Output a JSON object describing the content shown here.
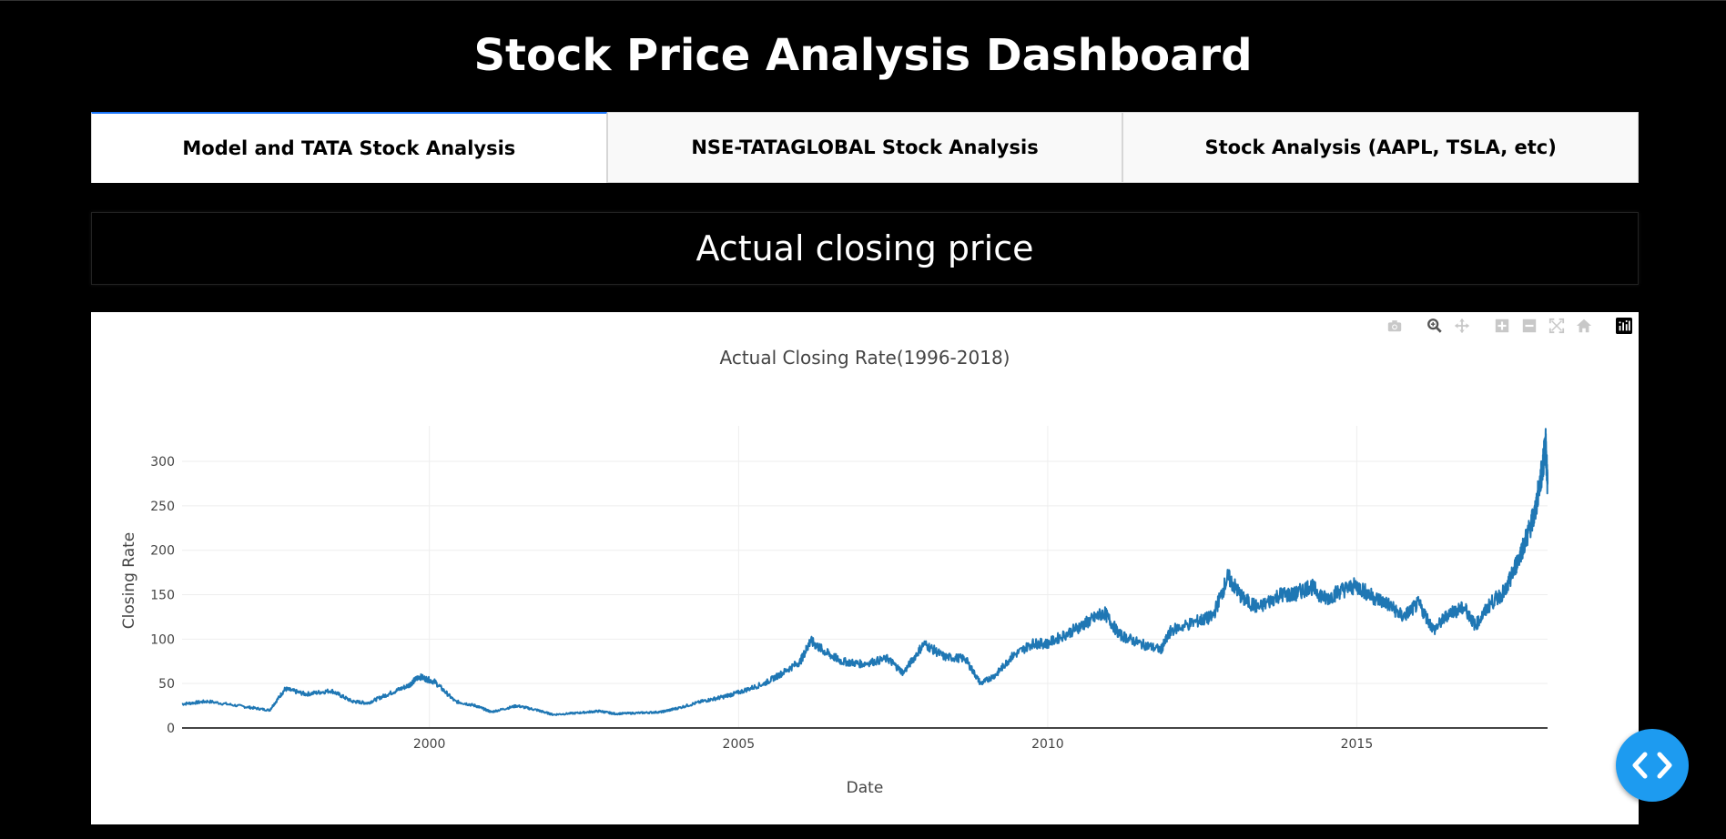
{
  "header": {
    "title": "Stock Price Analysis Dashboard"
  },
  "tabs": [
    {
      "label": "Model and TATA Stock Analysis",
      "selected": true
    },
    {
      "label": "NSE-TATAGLOBAL Stock Analysis",
      "selected": false
    },
    {
      "label": "Stock Analysis (AAPL, TSLA, etc)",
      "selected": false
    }
  ],
  "section": {
    "heading": "Actual closing price"
  },
  "modebar": {
    "icons": [
      "camera-icon",
      "zoom-icon",
      "pan-icon",
      "zoom-in-icon",
      "zoom-out-icon",
      "autoscale-icon",
      "reset-axes-icon",
      "plotly-logo-icon"
    ]
  },
  "fab": {
    "icon": "code-icon",
    "color": "#1d9bf0"
  },
  "chart_data": {
    "type": "line",
    "title": "Actual Closing Rate(1996-2018)",
    "xlabel": "Date",
    "ylabel": "Closing Rate",
    "xlim": [
      "1996-01-01",
      "2018-02-01"
    ],
    "ylim": [
      0,
      340
    ],
    "xticks": [
      "2000",
      "2005",
      "2010",
      "2015"
    ],
    "yticks": [
      "0",
      "50",
      "100",
      "150",
      "200",
      "250",
      "300"
    ],
    "grid": true,
    "line_color": "#1f77b4",
    "series": [
      {
        "x": [
          "1996-01-01",
          "1996-06-01",
          "1997-01-01",
          "1997-06-01",
          "1997-09-01",
          "1998-01-01",
          "1998-06-01",
          "1998-10-01",
          "1999-01-01",
          "1999-05-01",
          "1999-09-01",
          "1999-11-01",
          "2000-02-01",
          "2000-06-01",
          "2000-10-01",
          "2001-01-01",
          "2001-06-01",
          "2001-10-01",
          "2002-01-01",
          "2002-06-01",
          "2002-10-01",
          "2003-01-01",
          "2003-06-01",
          "2003-10-01",
          "2004-01-01",
          "2004-06-01",
          "2004-10-01",
          "2005-01-01",
          "2005-06-01",
          "2005-09-01",
          "2006-01-01",
          "2006-03-01",
          "2006-06-01",
          "2006-09-01",
          "2007-01-01",
          "2007-06-01",
          "2007-09-01",
          "2008-01-01",
          "2008-05-01",
          "2008-09-01",
          "2008-12-01",
          "2009-03-01",
          "2009-06-01",
          "2009-10-01",
          "2010-01-01",
          "2010-06-01",
          "2010-09-01",
          "2010-12-01",
          "2011-03-01",
          "2011-07-01",
          "2011-11-01",
          "2012-01-01",
          "2012-06-01",
          "2012-09-01",
          "2012-12-01",
          "2013-03-01",
          "2013-06-01",
          "2013-10-01",
          "2014-01-01",
          "2014-04-01",
          "2014-07-01",
          "2014-10-01",
          "2015-01-01",
          "2015-04-01",
          "2015-07-01",
          "2015-10-01",
          "2016-01-01",
          "2016-04-01",
          "2016-07-01",
          "2016-10-01",
          "2016-12-01",
          "2017-03-01",
          "2017-06-01",
          "2017-08-01",
          "2017-10-01",
          "2017-11-15",
          "2018-01-01",
          "2018-01-20",
          "2018-02-01"
        ],
        "y": [
          27,
          30,
          24,
          20,
          44,
          38,
          42,
          30,
          28,
          38,
          48,
          58,
          52,
          30,
          25,
          18,
          25,
          20,
          15,
          17,
          19,
          16,
          17,
          18,
          22,
          30,
          35,
          40,
          50,
          60,
          75,
          98,
          85,
          75,
          72,
          78,
          62,
          95,
          80,
          78,
          50,
          60,
          80,
          95,
          95,
          110,
          120,
          130,
          105,
          95,
          88,
          110,
          120,
          125,
          170,
          145,
          135,
          150,
          150,
          160,
          145,
          155,
          160,
          148,
          140,
          125,
          140,
          110,
          130,
          135,
          115,
          140,
          155,
          185,
          215,
          240,
          290,
          320,
          275
        ]
      }
    ]
  }
}
